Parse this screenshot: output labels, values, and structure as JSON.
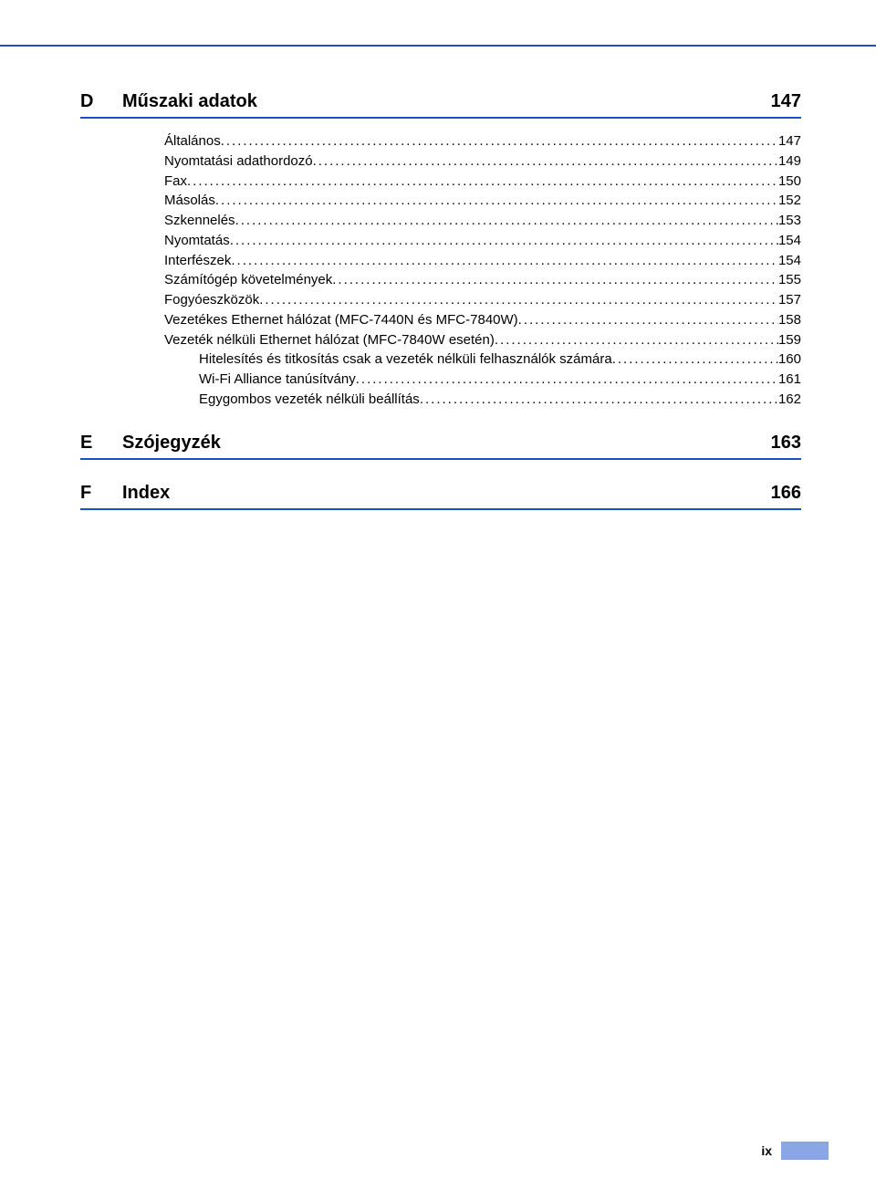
{
  "colors": {
    "rule": "#1a4fc7",
    "tab": "#8aa6e6",
    "text": "#000000",
    "background": "#ffffff"
  },
  "typography": {
    "body_font": "Arial",
    "heading_size_pt": 20,
    "entry_size_pt": 15
  },
  "sections": [
    {
      "letter": "D",
      "title": "Műszaki adatok",
      "page": "147",
      "entries": [
        {
          "label": "Általános",
          "page": "147",
          "indent": 0
        },
        {
          "label": "Nyomtatási adathordozó",
          "page": "149",
          "indent": 0
        },
        {
          "label": "Fax",
          "page": "150",
          "indent": 0
        },
        {
          "label": "Másolás",
          "page": "152",
          "indent": 0
        },
        {
          "label": "Szkennelés",
          "page": "153",
          "indent": 0
        },
        {
          "label": "Nyomtatás",
          "page": "154",
          "indent": 0
        },
        {
          "label": "Interfészek",
          "page": "154",
          "indent": 0
        },
        {
          "label": "Számítógép követelmények",
          "page": "155",
          "indent": 0
        },
        {
          "label": "Fogyóeszközök",
          "page": "157",
          "indent": 0
        },
        {
          "label": "Vezetékes Ethernet hálózat (MFC-7440N és MFC-7840W)",
          "page": "158",
          "indent": 0
        },
        {
          "label": "Vezeték nélküli Ethernet hálózat (MFC-7840W esetén)",
          "page": "159",
          "indent": 0
        },
        {
          "label": "Hitelesítés és titkosítás csak a vezeték nélküli felhasználók számára",
          "page": "160",
          "indent": 1
        },
        {
          "label": "Wi-Fi Alliance tanúsítvány",
          "page": "161",
          "indent": 1
        },
        {
          "label": "Egygombos vezeték nélküli beállítás",
          "page": "162",
          "indent": 1
        }
      ]
    },
    {
      "letter": "E",
      "title": "Szójegyzék",
      "page": "163",
      "entries": []
    },
    {
      "letter": "F",
      "title": "Index",
      "page": "166",
      "entries": []
    }
  ],
  "page_number": "ix"
}
